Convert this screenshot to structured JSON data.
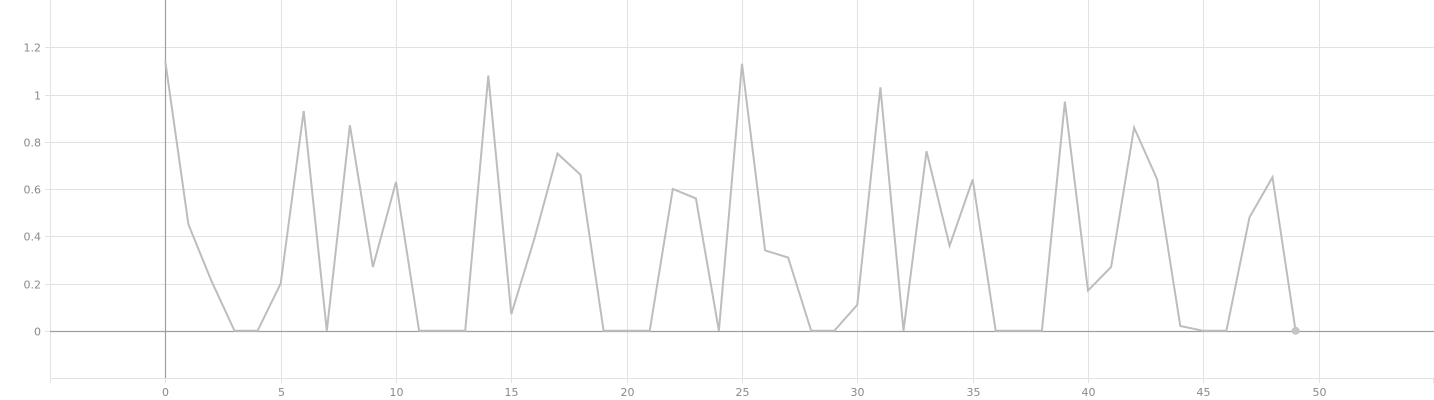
{
  "chart_data": {
    "type": "line",
    "title": "",
    "xlabel": "",
    "ylabel": "",
    "xlim": [
      -5,
      55
    ],
    "ylim": [
      -0.2,
      1.4
    ],
    "x_ticks": [
      0,
      5,
      10,
      15,
      20,
      25,
      30,
      35,
      40,
      45,
      50
    ],
    "y_ticks": [
      0,
      0.2,
      0.4,
      0.6,
      0.8,
      1,
      1.2
    ],
    "grid": true,
    "legend": "none",
    "series": [
      {
        "color": "#bdbdbd",
        "x": [
          0,
          1,
          2,
          3,
          4,
          5,
          6,
          7,
          8,
          9,
          10,
          11,
          12,
          13,
          14,
          15,
          16,
          17,
          18,
          19,
          20,
          21,
          22,
          23,
          24,
          25,
          26,
          27,
          28,
          29,
          30,
          31,
          32,
          33,
          34,
          35,
          36,
          37,
          38,
          39,
          40,
          41,
          42,
          43,
          44,
          45,
          46,
          47,
          48,
          49
        ],
        "values": [
          1.14,
          0.45,
          0.21,
          0,
          0,
          0.2,
          0.93,
          0,
          0.87,
          0.27,
          0.63,
          0,
          0,
          0,
          1.08,
          0.07,
          0.39,
          0.75,
          0.66,
          0,
          0,
          0,
          0.6,
          0.56,
          0,
          1.13,
          0.34,
          0.31,
          0,
          0,
          0.11,
          1.03,
          0,
          0.76,
          0.36,
          0.64,
          0,
          0,
          0,
          0.97,
          0.17,
          0.27,
          0.86,
          0.64,
          0.02,
          0,
          0,
          0.48,
          0.65,
          0
        ]
      }
    ],
    "highlight_x": 49
  },
  "colors": {
    "grid": "#e2e2e2",
    "axis": "#9e9e9e",
    "line": "#bdbdbd",
    "marker": "#c4c4c4"
  }
}
